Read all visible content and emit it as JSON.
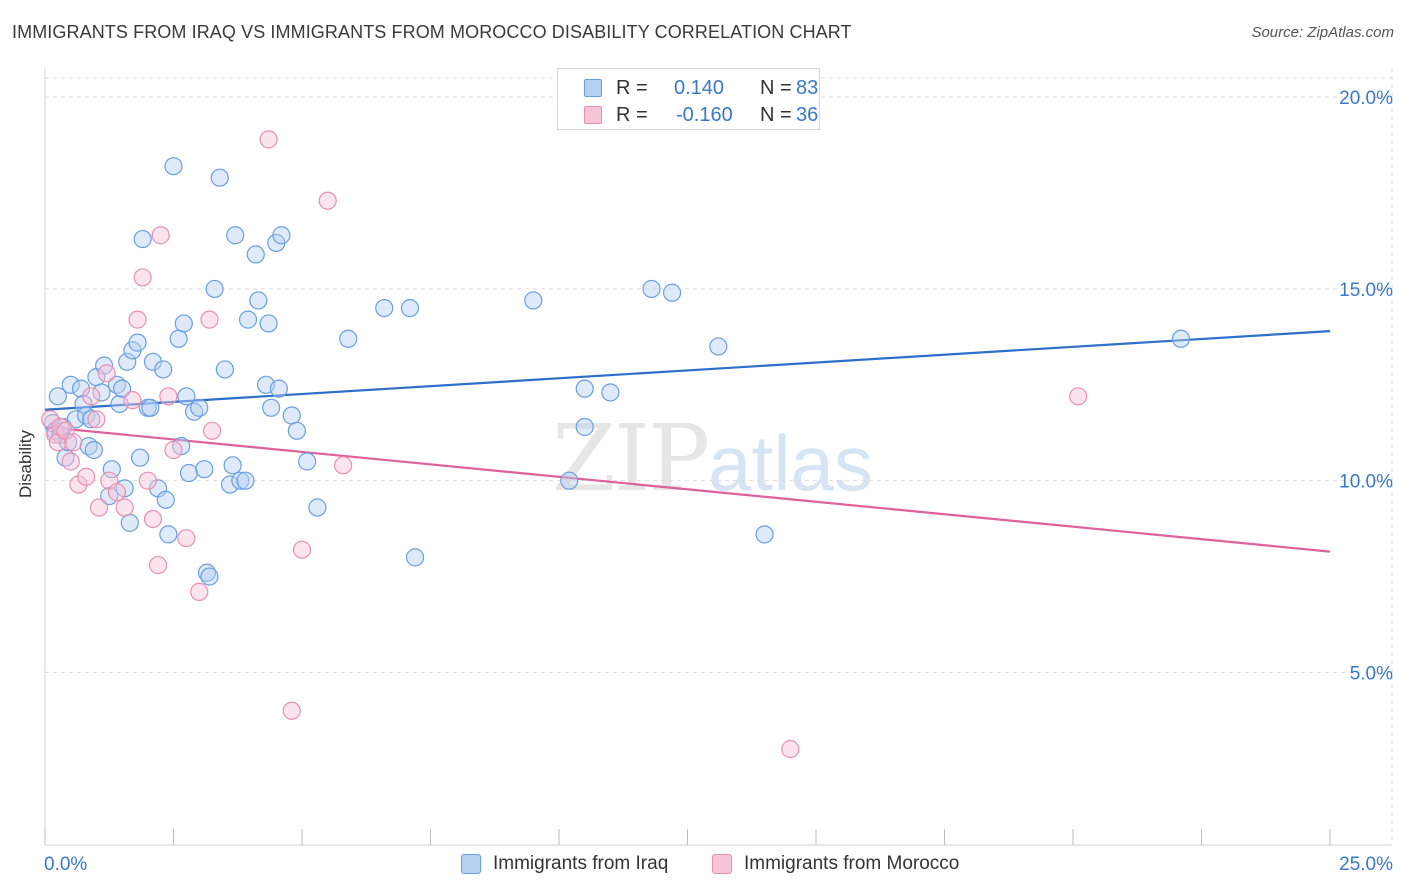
{
  "chart_data": {
    "type": "scatter",
    "title": "IMMIGRANTS FROM IRAQ VS IMMIGRANTS FROM MOROCCO DISABILITY CORRELATION CHART",
    "source": "Source: ZipAtlas.com",
    "xlabel": "",
    "ylabel": "Disability",
    "xlim": [
      0,
      25
    ],
    "ylim": [
      0.5,
      20.5
    ],
    "x_tick_labels": [
      "0.0%",
      "25.0%"
    ],
    "y_ticks": [
      5,
      10,
      15,
      20
    ],
    "y_tick_labels": [
      "5.0%",
      "10.0%",
      "15.0%",
      "20.0%"
    ],
    "grid": true,
    "watermark": {
      "part1": "ZIP",
      "part2": "atlas"
    },
    "legend_stats": [
      {
        "r_label": "R =",
        "r_value": "0.140",
        "n_label": "N =",
        "n_value": "83"
      },
      {
        "r_label": "R =",
        "r_value": "-0.160",
        "n_label": "N =",
        "n_value": "36"
      }
    ],
    "series": [
      {
        "name": "Immigrants from Iraq",
        "color": "#6a9fe0",
        "fill": "#b6d0f2",
        "trend": {
          "x": [
            0,
            25
          ],
          "y": [
            11.85,
            13.9
          ],
          "color": "#2f6fcc"
        },
        "points": [
          [
            0.15,
            11.5
          ],
          [
            0.2,
            11.3
          ],
          [
            0.25,
            12.2
          ],
          [
            0.3,
            11.2
          ],
          [
            0.35,
            11.4
          ],
          [
            0.4,
            10.6
          ],
          [
            0.45,
            11.0
          ],
          [
            0.5,
            12.5
          ],
          [
            0.6,
            11.6
          ],
          [
            0.7,
            12.4
          ],
          [
            0.75,
            12.0
          ],
          [
            0.8,
            11.7
          ],
          [
            0.85,
            10.9
          ],
          [
            0.9,
            11.6
          ],
          [
            0.95,
            10.8
          ],
          [
            1.0,
            12.7
          ],
          [
            1.1,
            12.3
          ],
          [
            1.15,
            13.0
          ],
          [
            1.25,
            9.6
          ],
          [
            1.3,
            10.3
          ],
          [
            1.4,
            12.5
          ],
          [
            1.45,
            12.0
          ],
          [
            1.5,
            12.4
          ],
          [
            1.55,
            9.8
          ],
          [
            1.6,
            13.1
          ],
          [
            1.65,
            8.9
          ],
          [
            1.7,
            13.4
          ],
          [
            1.8,
            13.6
          ],
          [
            1.85,
            10.6
          ],
          [
            1.9,
            16.3
          ],
          [
            2.0,
            11.9
          ],
          [
            2.05,
            11.9
          ],
          [
            2.1,
            13.1
          ],
          [
            2.2,
            9.8
          ],
          [
            2.3,
            12.9
          ],
          [
            2.35,
            9.5
          ],
          [
            2.4,
            8.6
          ],
          [
            2.5,
            18.2
          ],
          [
            2.6,
            13.7
          ],
          [
            2.65,
            10.9
          ],
          [
            2.7,
            14.1
          ],
          [
            2.75,
            12.2
          ],
          [
            2.8,
            10.2
          ],
          [
            2.9,
            11.8
          ],
          [
            3.0,
            11.9
          ],
          [
            3.1,
            10.3
          ],
          [
            3.15,
            7.6
          ],
          [
            3.2,
            7.5
          ],
          [
            3.3,
            15.0
          ],
          [
            3.4,
            17.9
          ],
          [
            3.5,
            12.9
          ],
          [
            3.6,
            9.9
          ],
          [
            3.65,
            10.4
          ],
          [
            3.7,
            16.4
          ],
          [
            3.8,
            10.0
          ],
          [
            3.9,
            10.0
          ],
          [
            3.95,
            14.2
          ],
          [
            4.1,
            15.9
          ],
          [
            4.15,
            14.7
          ],
          [
            4.3,
            12.5
          ],
          [
            4.35,
            14.1
          ],
          [
            4.4,
            11.9
          ],
          [
            4.5,
            16.2
          ],
          [
            4.55,
            12.4
          ],
          [
            4.6,
            16.4
          ],
          [
            4.8,
            11.7
          ],
          [
            4.9,
            11.3
          ],
          [
            5.1,
            10.5
          ],
          [
            5.3,
            9.3
          ],
          [
            5.9,
            13.7
          ],
          [
            6.6,
            14.5
          ],
          [
            7.1,
            14.5
          ],
          [
            7.2,
            8.0
          ],
          [
            9.5,
            14.7
          ],
          [
            10.2,
            10.0
          ],
          [
            10.5,
            12.4
          ],
          [
            10.5,
            11.4
          ],
          [
            11.0,
            12.3
          ],
          [
            11.8,
            15.0
          ],
          [
            12.2,
            14.9
          ],
          [
            13.1,
            13.5
          ],
          [
            14.0,
            8.6
          ],
          [
            22.1,
            13.7
          ]
        ]
      },
      {
        "name": "Immigrants from Morocco",
        "color": "#e890b0",
        "fill": "#f6c4d6",
        "trend": {
          "x": [
            0,
            25
          ],
          "y": [
            11.4,
            8.15
          ],
          "color": "#e0609a"
        },
        "points": [
          [
            0.1,
            11.6
          ],
          [
            0.2,
            11.2
          ],
          [
            0.25,
            11.0
          ],
          [
            0.3,
            11.4
          ],
          [
            0.4,
            11.3
          ],
          [
            0.5,
            10.5
          ],
          [
            0.55,
            11.0
          ],
          [
            0.65,
            9.9
          ],
          [
            0.8,
            10.1
          ],
          [
            0.9,
            12.2
          ],
          [
            1.0,
            11.6
          ],
          [
            1.05,
            9.3
          ],
          [
            1.2,
            12.8
          ],
          [
            1.25,
            10.0
          ],
          [
            1.4,
            9.7
          ],
          [
            1.55,
            9.3
          ],
          [
            1.7,
            12.1
          ],
          [
            1.8,
            14.2
          ],
          [
            1.9,
            15.3
          ],
          [
            2.0,
            10.0
          ],
          [
            2.1,
            9.0
          ],
          [
            2.2,
            7.8
          ],
          [
            2.25,
            16.4
          ],
          [
            2.4,
            12.2
          ],
          [
            2.5,
            10.8
          ],
          [
            2.75,
            8.5
          ],
          [
            3.0,
            7.1
          ],
          [
            3.2,
            14.2
          ],
          [
            3.25,
            11.3
          ],
          [
            4.35,
            18.9
          ],
          [
            4.8,
            4.0
          ],
          [
            5.0,
            8.2
          ],
          [
            5.5,
            17.3
          ],
          [
            5.8,
            10.4
          ],
          [
            14.5,
            3.0
          ],
          [
            20.1,
            12.2
          ]
        ]
      }
    ]
  }
}
